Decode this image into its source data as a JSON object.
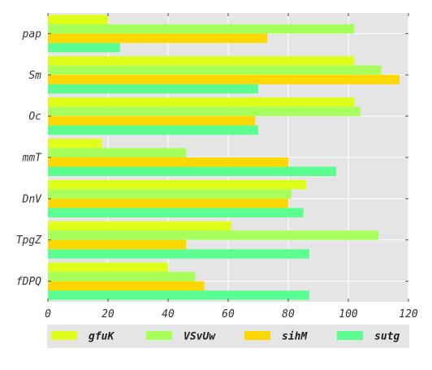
{
  "chart_data": {
    "type": "bar",
    "orientation": "horizontal",
    "categories": [
      "pap",
      "Sm",
      "Oc",
      "mmT",
      "DnV",
      "TpgZ",
      "fDPQ"
    ],
    "series": [
      {
        "name": "gfuK",
        "color": "#dfff1a",
        "values": [
          20,
          102,
          102,
          18,
          86,
          61,
          40
        ]
      },
      {
        "name": "VSvUw",
        "color": "#a6ff5a",
        "values": [
          102,
          111,
          104,
          46,
          81,
          110,
          49
        ]
      },
      {
        "name": "sihM",
        "color": "#ffd700",
        "values": [
          73,
          117,
          69,
          80,
          80,
          46,
          52
        ]
      },
      {
        "name": "sutg",
        "color": "#5cff8f",
        "values": [
          24,
          70,
          70,
          96,
          85,
          87,
          87
        ]
      }
    ],
    "xlim": [
      0,
      120
    ],
    "xticks": [
      0,
      20,
      40,
      60,
      80,
      100,
      120
    ],
    "grid": true,
    "legend_position": "bottom"
  }
}
